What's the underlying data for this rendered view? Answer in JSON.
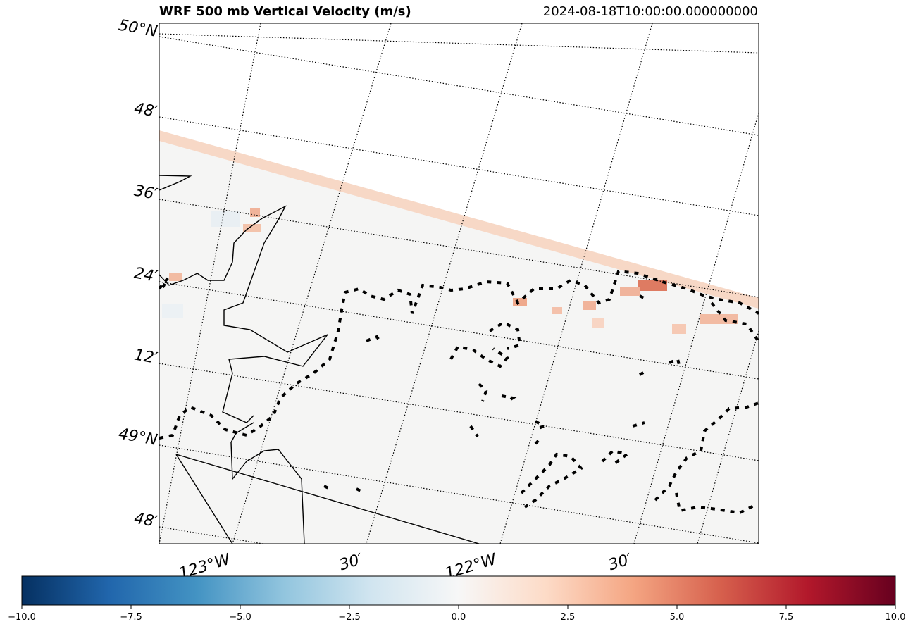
{
  "title": "WRF 500 mb Vertical Velocity (m/s)",
  "timestamp": "2024-08-18T10:00:00.000000000",
  "lat_labels": [
    "50°N",
    "48′",
    "36′",
    "24′",
    "12′",
    "49°N",
    "48′"
  ],
  "lon_labels": [
    "123°W",
    "30′",
    "122°W",
    "30′"
  ],
  "colorbar": {
    "colormap": "RdBu_r",
    "min": -10.0,
    "max": 10.0,
    "ticks": [
      "−10.0",
      "−7.5",
      "−5.0",
      "−2.5",
      "0.0",
      "2.5",
      "5.0",
      "7.5",
      "10.0"
    ],
    "colors": [
      "#053061",
      "#2166ac",
      "#4393c3",
      "#92c5de",
      "#d1e5f0",
      "#f7f7f7",
      "#fddbc7",
      "#f4a582",
      "#d6604d",
      "#b2182b",
      "#67001f"
    ]
  }
}
